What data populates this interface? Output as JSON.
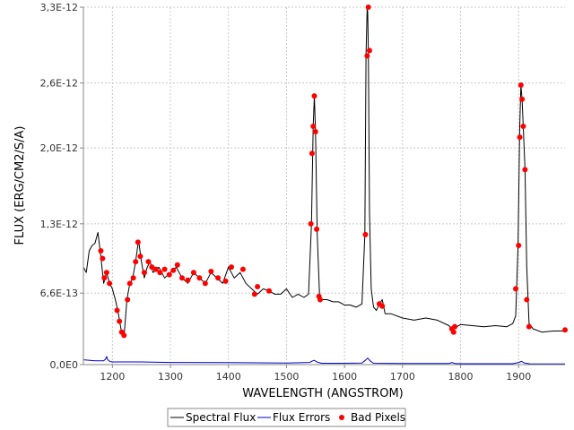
{
  "chart_data": {
    "type": "line",
    "title": "",
    "xlabel": "WAVELENGTH (ANGSTROM)",
    "ylabel": "FLUX (ERG/CM2/S/A)",
    "xlim": [
      1150,
      1980
    ],
    "ylim": [
      0,
      3.3e-12
    ],
    "x_ticks": [
      1200,
      1300,
      1400,
      1500,
      1600,
      1700,
      1800,
      1900
    ],
    "x_tick_labels": [
      "1200",
      "1300",
      "1400",
      "1500",
      "1600",
      "1700",
      "1800",
      "1900"
    ],
    "y_ticks": [
      0,
      6.6e-13,
      1.3e-12,
      2e-12,
      2.6e-12,
      3.3e-12
    ],
    "y_tick_labels": [
      "0,0E0",
      "6,6E-13",
      "1,3E-12",
      "2,0E-12",
      "2,6E-12",
      "3,3E-12"
    ],
    "grid": true,
    "legend_position": "bottom",
    "series": [
      {
        "name": "Spectral Flux",
        "color": "#000000",
        "x": [
          1150,
          1155,
          1160,
          1165,
          1170,
          1175,
          1180,
          1185,
          1190,
          1195,
          1200,
          1205,
          1210,
          1215,
          1220,
          1225,
          1230,
          1235,
          1240,
          1245,
          1250,
          1255,
          1260,
          1265,
          1270,
          1280,
          1290,
          1300,
          1310,
          1320,
          1330,
          1340,
          1350,
          1360,
          1370,
          1380,
          1390,
          1400,
          1410,
          1420,
          1430,
          1440,
          1450,
          1460,
          1470,
          1480,
          1490,
          1500,
          1510,
          1520,
          1530,
          1538,
          1543,
          1546,
          1548,
          1550,
          1553,
          1557,
          1560,
          1570,
          1580,
          1590,
          1600,
          1610,
          1620,
          1630,
          1635,
          1637,
          1639,
          1640,
          1641,
          1643,
          1646,
          1650,
          1655,
          1660,
          1665,
          1670,
          1680,
          1700,
          1720,
          1740,
          1760,
          1780,
          1785,
          1790,
          1800,
          1820,
          1840,
          1860,
          1880,
          1890,
          1895,
          1899,
          1902,
          1904,
          1906,
          1908,
          1911,
          1914,
          1918,
          1925,
          1940,
          1960,
          1980
        ],
        "y": [
          9e-13,
          8.5e-13,
          1.05e-12,
          1.1e-12,
          1.12e-12,
          1.22e-12,
          1e-12,
          7.5e-13,
          8.5e-13,
          7.5e-13,
          7e-13,
          6e-13,
          4.8e-13,
          3.2e-13,
          2.6e-13,
          6e-13,
          7.5e-13,
          8e-13,
          9.5e-13,
          1.15e-12,
          9.5e-13,
          8e-13,
          9e-13,
          9.5e-13,
          8.5e-13,
          9e-13,
          8e-13,
          8.5e-13,
          9e-13,
          8e-13,
          7.5e-13,
          8.5e-13,
          8e-13,
          7.5e-13,
          8.5e-13,
          8e-13,
          7.5e-13,
          9e-13,
          8e-13,
          8.5e-13,
          7.5e-13,
          7e-13,
          6.5e-13,
          7e-13,
          6.8e-13,
          6.5e-13,
          6.5e-13,
          7e-13,
          6.2e-13,
          6.5e-13,
          6.2e-13,
          6.5e-13,
          1.3e-12,
          2.2e-12,
          2.48e-12,
          2.15e-12,
          1.2e-12,
          6.4e-13,
          6e-13,
          6e-13,
          5.8e-13,
          5.8e-13,
          5.5e-13,
          5.5e-13,
          5.3e-13,
          5.6e-13,
          1.2e-12,
          2.85e-12,
          3.3e-12,
          3.25e-12,
          2.9e-12,
          1.4e-12,
          7e-13,
          5.3e-13,
          5e-13,
          5.6e-13,
          6e-13,
          4.7e-13,
          4.7e-13,
          4.3e-13,
          4.1e-13,
          4.3e-13,
          4.1e-13,
          3.6e-13,
          3.2e-13,
          3.4e-13,
          3.7e-13,
          3.6e-13,
          3.5e-13,
          3.6e-13,
          3.5e-13,
          3.8e-13,
          4.5e-13,
          1.1e-12,
          2.2e-12,
          2.58e-12,
          2.45e-12,
          2.2e-12,
          1.8e-12,
          9e-13,
          3.8e-13,
          3.3e-13,
          3e-13,
          3.1e-13,
          3.1e-13
        ]
      },
      {
        "name": "Flux Errors",
        "color": "#0000cc",
        "x": [
          1150,
          1170,
          1185,
          1188,
          1190,
          1192,
          1196,
          1200,
          1250,
          1300,
          1400,
          1500,
          1540,
          1545,
          1548,
          1552,
          1560,
          1600,
          1630,
          1636,
          1640,
          1644,
          1650,
          1700,
          1780,
          1785,
          1790,
          1800,
          1890,
          1900,
          1905,
          1910,
          1920,
          1980
        ],
        "y": [
          4.5e-14,
          3.5e-14,
          3.5e-14,
          5e-14,
          7.5e-14,
          4.5e-14,
          2.8e-14,
          2.5e-14,
          2.5e-14,
          2e-14,
          1.8e-14,
          1.5e-14,
          2e-14,
          3.5e-14,
          4e-14,
          2.5e-14,
          1.2e-14,
          1.2e-14,
          1.5e-14,
          4e-14,
          6e-14,
          3.5e-14,
          1.2e-14,
          1e-14,
          1e-14,
          2e-14,
          1e-14,
          8e-15,
          8e-15,
          2e-14,
          3e-14,
          1.5e-14,
          6e-15,
          6e-15
        ]
      },
      {
        "name": "Bad Pixels",
        "color": "#ff0000",
        "marker": "circle",
        "x": [
          1180,
          1183,
          1186,
          1190,
          1195,
          1208,
          1212,
          1216,
          1220,
          1226,
          1230,
          1236,
          1240,
          1244,
          1248,
          1255,
          1262,
          1268,
          1275,
          1282,
          1290,
          1298,
          1305,
          1312,
          1320,
          1330,
          1340,
          1350,
          1360,
          1370,
          1382,
          1395,
          1405,
          1425,
          1445,
          1450,
          1470,
          1542,
          1544,
          1546,
          1548,
          1550,
          1552,
          1556,
          1558,
          1636,
          1639,
          1641,
          1643,
          1660,
          1665,
          1785,
          1788,
          1790,
          1895,
          1900,
          1902,
          1904,
          1906,
          1908,
          1911,
          1914,
          1918,
          1980
        ],
        "y": [
          1.05e-12,
          9.8e-13,
          8e-13,
          8.5e-13,
          7.5e-13,
          5e-13,
          4e-13,
          3e-13,
          2.7e-13,
          6e-13,
          7.5e-13,
          8e-13,
          9.5e-13,
          1.13e-12,
          1e-12,
          8.5e-13,
          9.5e-13,
          9e-13,
          8.8e-13,
          8.5e-13,
          8.8e-13,
          8.3e-13,
          8.7e-13,
          9.2e-13,
          8e-13,
          7.8e-13,
          8.5e-13,
          8e-13,
          7.5e-13,
          8.6e-13,
          8e-13,
          7.7e-13,
          9e-13,
          8.8e-13,
          6.5e-13,
          7.2e-13,
          6.8e-13,
          1.3e-12,
          1.95e-12,
          2.2e-12,
          2.48e-12,
          2.15e-12,
          1.25e-12,
          6.3e-13,
          6e-13,
          1.2e-12,
          2.85e-12,
          3.3e-12,
          2.9e-12,
          5.6e-13,
          5.4e-13,
          3.3e-13,
          3e-13,
          3.5e-13,
          7e-13,
          1.1e-12,
          2.1e-12,
          2.58e-12,
          2.45e-12,
          2.2e-12,
          1.8e-12,
          6e-13,
          3.5e-13,
          3.2e-13
        ]
      }
    ]
  }
}
